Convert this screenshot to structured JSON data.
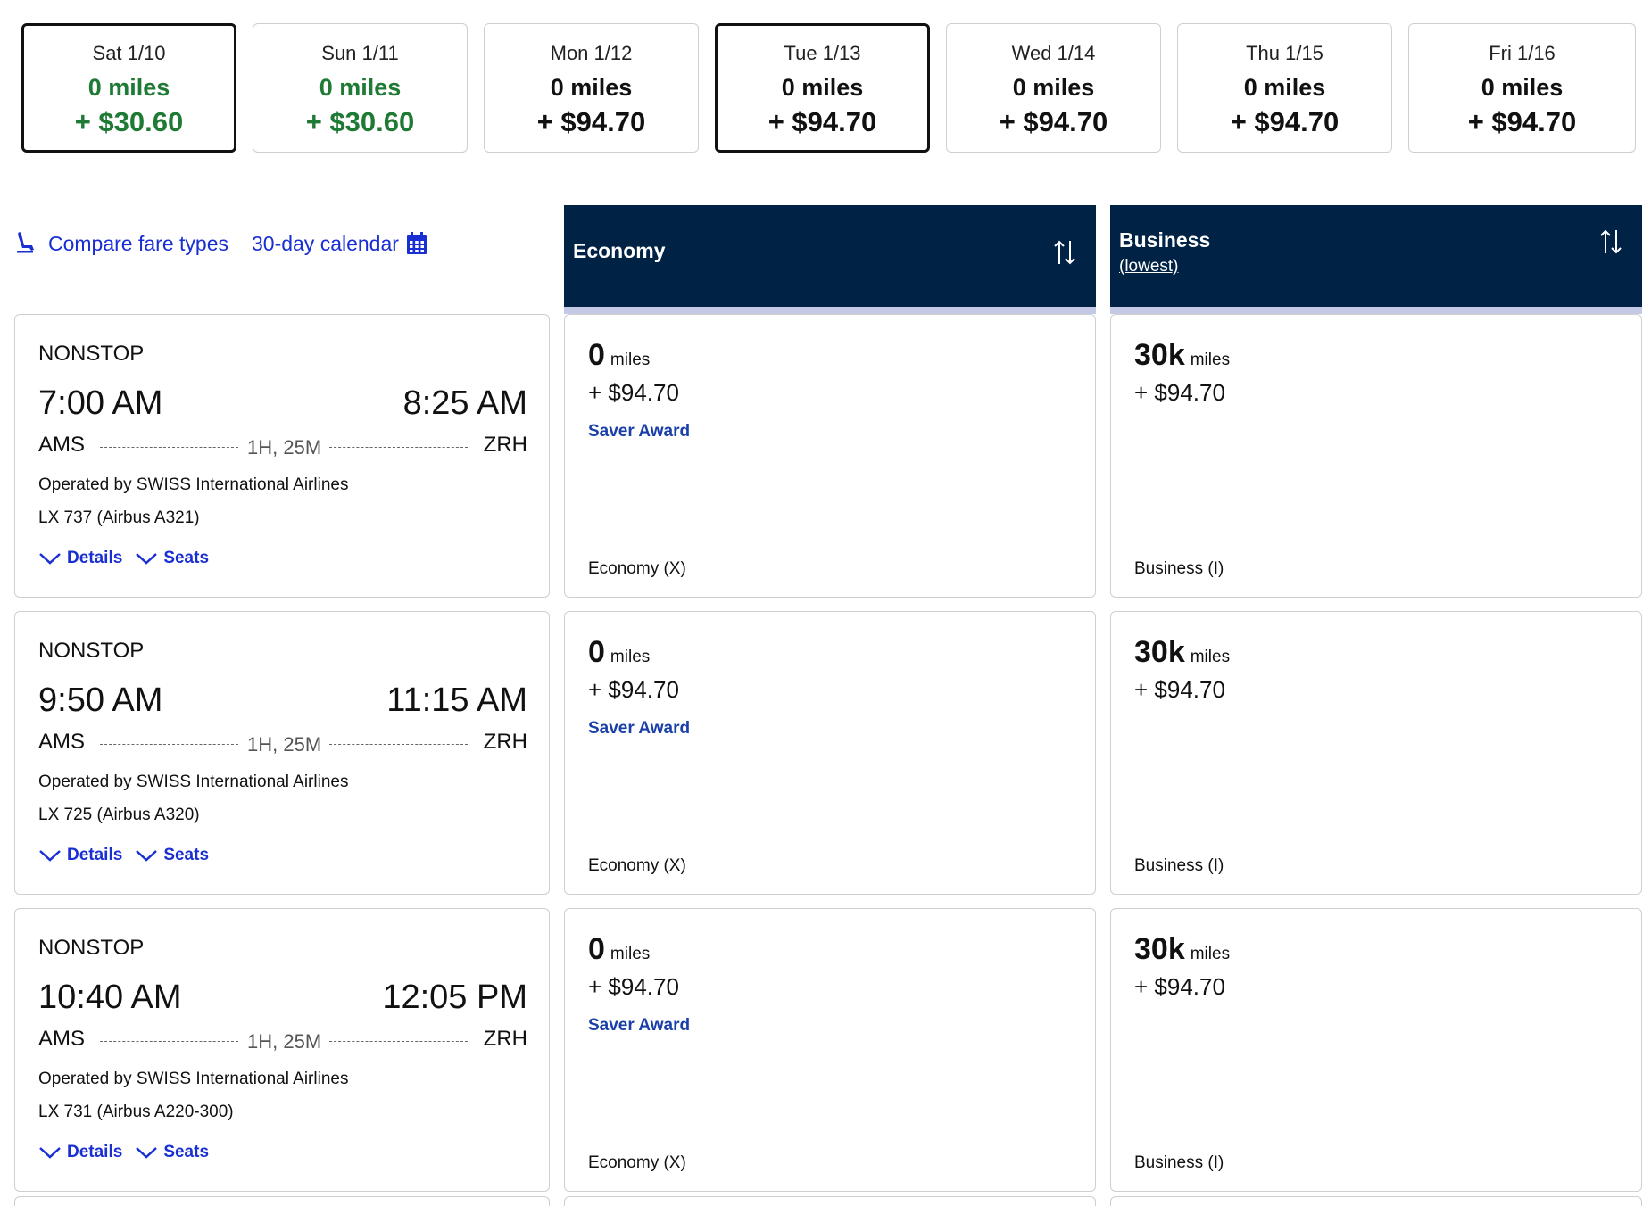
{
  "dates": [
    {
      "label": "Sat 1/10",
      "miles": "0 miles",
      "cash": "+ $30.60",
      "low": true,
      "selected": true
    },
    {
      "label": "Sun 1/11",
      "miles": "0 miles",
      "cash": "+ $30.60",
      "low": true,
      "selected": false
    },
    {
      "label": "Mon 1/12",
      "miles": "0 miles",
      "cash": "+ $94.70",
      "low": false,
      "selected": false
    },
    {
      "label": "Tue 1/13",
      "miles": "0 miles",
      "cash": "+ $94.70",
      "low": false,
      "selected": true
    },
    {
      "label": "Wed 1/14",
      "miles": "0 miles",
      "cash": "+ $94.70",
      "low": false,
      "selected": false
    },
    {
      "label": "Thu 1/15",
      "miles": "0 miles",
      "cash": "+ $94.70",
      "low": false,
      "selected": false
    },
    {
      "label": "Fri 1/16",
      "miles": "0 miles",
      "cash": "+ $94.70",
      "low": false,
      "selected": false
    }
  ],
  "links": {
    "compare": "Compare fare types",
    "calendar": "30-day calendar"
  },
  "columns": {
    "economy": {
      "title": "Economy"
    },
    "business": {
      "title": "Business",
      "subtitle": "(lowest)"
    }
  },
  "flights": [
    {
      "stops": "NONSTOP",
      "depart": "7:00 AM",
      "arrive": "8:25 AM",
      "from": "AMS",
      "to": "ZRH",
      "duration": "1H, 25M",
      "operator": "Operated by SWISS International Airlines",
      "aircraft": "LX 737 (Airbus A321)",
      "details_label": "Details",
      "seats_label": "Seats",
      "economy": {
        "miles": "0",
        "miles_unit": "miles",
        "cash": "+ $94.70",
        "award": "Saver Award",
        "class": "Economy (X)"
      },
      "business": {
        "miles": "30k",
        "miles_unit": "miles",
        "cash": "+ $94.70",
        "class": "Business (I)"
      }
    },
    {
      "stops": "NONSTOP",
      "depart": "9:50 AM",
      "arrive": "11:15 AM",
      "from": "AMS",
      "to": "ZRH",
      "duration": "1H, 25M",
      "operator": "Operated by SWISS International Airlines",
      "aircraft": "LX 725 (Airbus A320)",
      "details_label": "Details",
      "seats_label": "Seats",
      "economy": {
        "miles": "0",
        "miles_unit": "miles",
        "cash": "+ $94.70",
        "award": "Saver Award",
        "class": "Economy (X)"
      },
      "business": {
        "miles": "30k",
        "miles_unit": "miles",
        "cash": "+ $94.70",
        "class": "Business (I)"
      }
    },
    {
      "stops": "NONSTOP",
      "depart": "10:40 AM",
      "arrive": "12:05 PM",
      "from": "AMS",
      "to": "ZRH",
      "duration": "1H, 25M",
      "operator": "Operated by SWISS International Airlines",
      "aircraft": "LX 731 (Airbus A220-300)",
      "details_label": "Details",
      "seats_label": "Seats",
      "economy": {
        "miles": "0",
        "miles_unit": "miles",
        "cash": "+ $94.70",
        "award": "Saver Award",
        "class": "Economy (X)"
      },
      "business": {
        "miles": "30k",
        "miles_unit": "miles",
        "cash": "+ $94.70",
        "class": "Business (I)"
      }
    }
  ],
  "colors": {
    "header_bg": "#002244",
    "low_fare": "#1f7a35",
    "link": "#1a2fd1"
  },
  "icons": {
    "compare": "seat-icon",
    "calendar": "calendar-icon",
    "sort": "sort-arrows-icon",
    "expand": "chevron-down-icon"
  }
}
